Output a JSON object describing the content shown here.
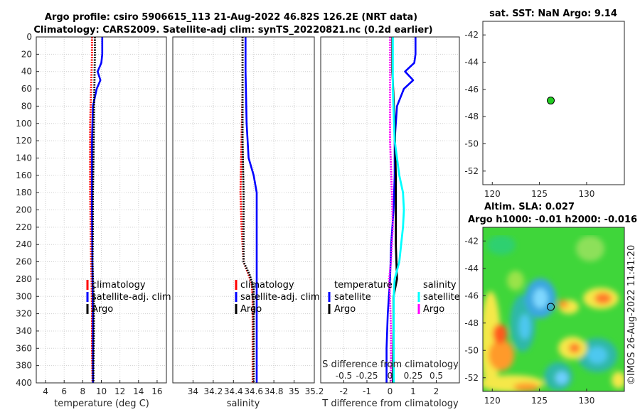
{
  "figure": {
    "title_line1": "Argo profile: csiro 5906615_113 21-Aug-2022 46.82S 126.2E (NRT data)",
    "title_line2": "Climatology: CARS2009. Satellite-adj clim: synTS_20220821.nc (0.2d earlier)",
    "copyright": "©IMOS 26-Aug-2022 11:41:20"
  },
  "colors": {
    "climatology": "#ff0000",
    "satellite": "#0000ff",
    "argo": "#000000",
    "salinity_satellite": "#00ffff",
    "salinity_argo": "#ff00ff",
    "argo_marker": "#22cc22",
    "grid": "#d0d0d0"
  },
  "chart_data": [
    {
      "id": "temperature",
      "type": "line",
      "xlabel": "temperature (deg C)",
      "xlim": [
        3,
        17
      ],
      "xticks": [
        "4",
        "6",
        "8",
        "10",
        "12",
        "14",
        "16"
      ],
      "ylim": [
        0,
        400
      ],
      "yticks": [
        "0",
        "20",
        "40",
        "60",
        "80",
        "100",
        "120",
        "140",
        "160",
        "180",
        "200",
        "220",
        "240",
        "260",
        "280",
        "300",
        "320",
        "340",
        "360",
        "380",
        "400"
      ],
      "grid": true,
      "legend": [
        "climatology",
        "satellite-adj. clim",
        "Argo"
      ],
      "series": [
        {
          "name": "climatology",
          "color": "#ff0000",
          "depth": [
            0,
            20,
            40,
            60,
            80,
            100,
            140,
            180,
            220,
            260,
            280,
            320,
            360,
            400
          ],
          "values": [
            9.0,
            9.0,
            8.95,
            8.9,
            8.85,
            8.8,
            8.8,
            8.8,
            8.85,
            8.9,
            8.95,
            9.0,
            9.0,
            9.05
          ]
        },
        {
          "name": "satellite-adj. clim",
          "color": "#0000ff",
          "depth": [
            0,
            20,
            30,
            40,
            50,
            60,
            80,
            120,
            200,
            280,
            320,
            400
          ],
          "values": [
            10.1,
            10.1,
            10.0,
            9.6,
            9.9,
            9.5,
            9.1,
            9.0,
            9.0,
            9.05,
            9.1,
            9.1
          ]
        },
        {
          "name": "Argo",
          "color": "#000000",
          "depth": [
            0,
            20,
            60,
            100,
            140,
            180,
            220,
            260,
            280,
            300,
            340,
            380,
            400
          ],
          "values": [
            9.3,
            9.3,
            9.25,
            9.2,
            9.15,
            9.1,
            9.1,
            9.05,
            9.1,
            9.2,
            9.2,
            9.15,
            9.15
          ]
        }
      ]
    },
    {
      "id": "salinity",
      "type": "line",
      "xlabel": "salinity",
      "xlim": [
        33.8,
        35.2
      ],
      "xticks": [
        "34",
        "34.2",
        "34.4",
        "34.6",
        "34.8",
        "35",
        "35.2"
      ],
      "ylim": [
        0,
        400
      ],
      "grid": true,
      "legend": [
        "climatology",
        "satellite-adj. clim",
        "Argo"
      ],
      "series": [
        {
          "name": "climatology",
          "color": "#ff0000",
          "depth": [
            0,
            60,
            120,
            180,
            220,
            260,
            275,
            285,
            300,
            340,
            400
          ],
          "values": [
            34.49,
            34.49,
            34.48,
            34.47,
            34.48,
            34.5,
            34.55,
            34.58,
            34.59,
            34.59,
            34.59
          ]
        },
        {
          "name": "satellite-adj. clim",
          "color": "#0000ff",
          "depth": [
            0,
            40,
            100,
            140,
            160,
            180,
            240,
            300,
            400
          ],
          "values": [
            34.52,
            34.52,
            34.53,
            34.55,
            34.6,
            34.63,
            34.63,
            34.63,
            34.63
          ]
        },
        {
          "name": "Argo",
          "color": "#000000",
          "depth": [
            0,
            60,
            120,
            180,
            220,
            260,
            275,
            290,
            320,
            360,
            400
          ],
          "values": [
            34.49,
            34.49,
            34.49,
            34.5,
            34.5,
            34.5,
            34.56,
            34.6,
            34.6,
            34.6,
            34.6
          ]
        }
      ]
    },
    {
      "id": "difference",
      "type": "line",
      "xlabel": "T difference from climatology",
      "xlabel_top": "S difference from climatology",
      "xlim": [
        -3,
        3
      ],
      "xticks": [
        "-2",
        "-1",
        "0",
        "1",
        "2"
      ],
      "xticks_top": [
        "-0.5",
        "-0.25",
        "0",
        "0.25",
        "0.5"
      ],
      "xlim_top": [
        -0.75,
        0.75
      ],
      "ylim": [
        0,
        400
      ],
      "grid": true,
      "legend_left_title": "temperature",
      "legend_right_title": "salinity",
      "legend_left": [
        "satellite",
        "Argo"
      ],
      "legend_right": [
        "satellite",
        "Argo"
      ],
      "series": [
        {
          "name": "T satellite",
          "color": "#0000ff",
          "scale": "bottom",
          "depth": [
            0,
            20,
            30,
            40,
            50,
            60,
            80,
            120,
            160,
            200,
            240,
            280,
            320,
            360,
            400
          ],
          "values": [
            1.1,
            1.1,
            1.05,
            0.65,
            1.0,
            0.6,
            0.3,
            0.2,
            0.2,
            0.15,
            0.05,
            0.0,
            -0.1,
            -0.15,
            -0.15
          ]
        },
        {
          "name": "T Argo",
          "color": "#000000",
          "scale": "bottom",
          "depth": [
            0,
            40,
            100,
            160,
            200,
            240,
            280,
            300,
            340,
            400
          ],
          "values": [
            0.1,
            0.1,
            0.2,
            0.25,
            0.25,
            0.25,
            0.3,
            0.15,
            0.15,
            0.12
          ]
        },
        {
          "name": "S satellite",
          "color": "#00ffff",
          "scale": "top",
          "depth": [
            0,
            60,
            120,
            160,
            180,
            200,
            220,
            260,
            280,
            300,
            340,
            400
          ],
          "values": [
            0.03,
            0.03,
            0.05,
            0.1,
            0.14,
            0.15,
            0.14,
            0.1,
            0.05,
            0.04,
            0.04,
            0.04
          ]
        },
        {
          "name": "S Argo",
          "color": "#ff00ff",
          "scale": "top",
          "depth": [
            0,
            60,
            120,
            180,
            220,
            260,
            280,
            300,
            340,
            400
          ],
          "values": [
            0.0,
            0.0,
            0.0,
            0.02,
            0.03,
            0.01,
            -0.01,
            0.0,
            0.01,
            0.01
          ]
        }
      ]
    },
    {
      "id": "sst_map",
      "type": "scatter",
      "title": "sat. SST: NaN Argo: 9.14",
      "xlim": [
        119,
        134
      ],
      "ylim": [
        -53,
        -41
      ],
      "xticks": [
        "120",
        "125",
        "130"
      ],
      "yticks": [
        "-42",
        "-44",
        "-46",
        "-48",
        "-50",
        "-52"
      ],
      "grid": false,
      "points": [
        {
          "lon": 126.2,
          "lat": -46.82,
          "label": "Argo"
        }
      ]
    },
    {
      "id": "sla_map",
      "type": "heatmap",
      "title_line1": "Altim. SLA: 0.027",
      "title_line2": "Argo h1000: -0.01 h2000: -0.016",
      "xlim": [
        119,
        134
      ],
      "ylim": [
        -53,
        -41
      ],
      "xticks": [
        "120",
        "125",
        "130"
      ],
      "yticks": [
        "-42",
        "-44",
        "-46",
        "-48",
        "-50",
        "-52"
      ],
      "grid": false,
      "points": [
        {
          "lon": 126.2,
          "lat": -46.82,
          "label": "Argo"
        }
      ]
    }
  ]
}
